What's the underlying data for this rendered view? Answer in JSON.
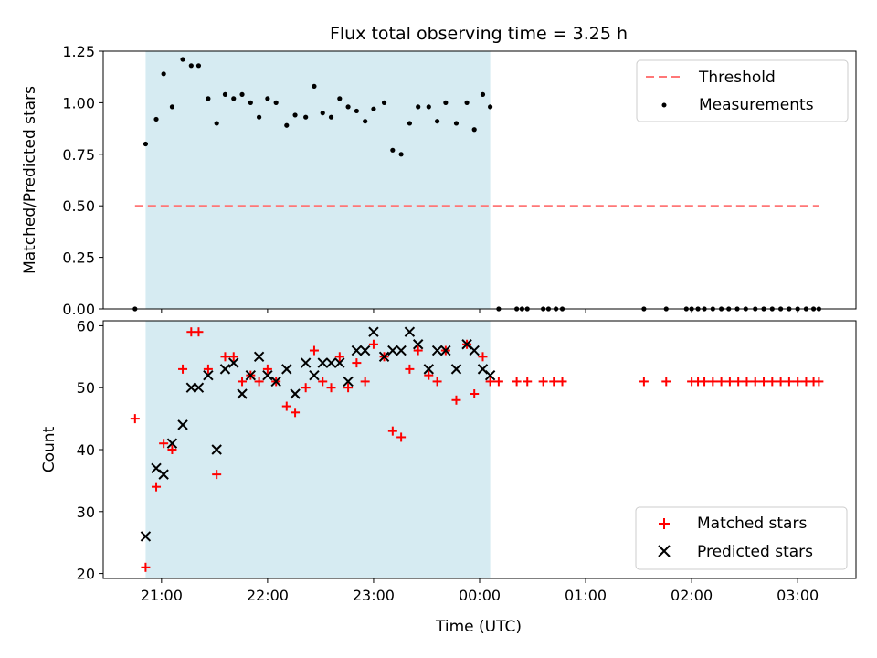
{
  "chart_data": {
    "title": "Flux total observing time = 3.25 h",
    "xlabel": "Time (UTC)",
    "x_unit": "hours after 21:00 UTC",
    "xlim": [
      -0.55,
      6.55
    ],
    "xticks": [
      {
        "value": 0,
        "label": "21:00"
      },
      {
        "value": 1,
        "label": "22:00"
      },
      {
        "value": 2,
        "label": "23:00"
      },
      {
        "value": 3,
        "label": "00:00"
      },
      {
        "value": 4,
        "label": "01:00"
      },
      {
        "value": 5,
        "label": "02:00"
      },
      {
        "value": 6,
        "label": "03:00"
      }
    ],
    "observing_window": {
      "start": -0.15,
      "end": 3.1,
      "color": "#add8e6"
    },
    "top": {
      "type": "scatter",
      "ylabel": "Matched/Predicted stars",
      "ylim": [
        0,
        1.25
      ],
      "yticks": [
        {
          "value": 0,
          "label": "0.00"
        },
        {
          "value": 0.25,
          "label": "0.25"
        },
        {
          "value": 0.5,
          "label": "0.50"
        },
        {
          "value": 0.75,
          "label": "0.75"
        },
        {
          "value": 1.0,
          "label": "1.00"
        },
        {
          "value": 1.25,
          "label": "1.25"
        }
      ],
      "threshold": {
        "name": "Threshold",
        "value": 0.5,
        "x_range": [
          -0.25,
          6.2
        ],
        "color": "#ff7777"
      },
      "legend": {
        "placement": "top-right",
        "entries": [
          "Threshold",
          "Measurements"
        ]
      },
      "series": [
        {
          "name": "Measurements",
          "color": "#000000",
          "points": [
            [
              -0.25,
              0.0
            ],
            [
              -0.15,
              0.8
            ],
            [
              -0.05,
              0.92
            ],
            [
              0.02,
              1.14
            ],
            [
              0.1,
              0.98
            ],
            [
              0.2,
              1.21
            ],
            [
              0.28,
              1.18
            ],
            [
              0.35,
              1.18
            ],
            [
              0.44,
              1.02
            ],
            [
              0.52,
              0.9
            ],
            [
              0.6,
              1.04
            ],
            [
              0.68,
              1.02
            ],
            [
              0.76,
              1.04
            ],
            [
              0.84,
              1.0
            ],
            [
              0.92,
              0.93
            ],
            [
              1.0,
              1.02
            ],
            [
              1.08,
              1.0
            ],
            [
              1.18,
              0.89
            ],
            [
              1.26,
              0.94
            ],
            [
              1.36,
              0.93
            ],
            [
              1.44,
              1.08
            ],
            [
              1.52,
              0.95
            ],
            [
              1.6,
              0.93
            ],
            [
              1.68,
              1.02
            ],
            [
              1.76,
              0.98
            ],
            [
              1.84,
              0.96
            ],
            [
              1.92,
              0.91
            ],
            [
              2.0,
              0.97
            ],
            [
              2.1,
              1.0
            ],
            [
              2.18,
              0.77
            ],
            [
              2.26,
              0.75
            ],
            [
              2.34,
              0.9
            ],
            [
              2.42,
              0.98
            ],
            [
              2.52,
              0.98
            ],
            [
              2.6,
              0.91
            ],
            [
              2.68,
              1.0
            ],
            [
              2.78,
              0.9
            ],
            [
              2.88,
              1.0
            ],
            [
              2.95,
              0.87
            ],
            [
              3.03,
              1.04
            ],
            [
              3.1,
              0.98
            ],
            [
              3.18,
              0.0
            ],
            [
              3.35,
              0.0
            ],
            [
              3.4,
              0.0
            ],
            [
              3.45,
              0.0
            ],
            [
              3.6,
              0.0
            ],
            [
              3.65,
              0.0
            ],
            [
              3.72,
              0.0
            ],
            [
              3.78,
              0.0
            ],
            [
              4.55,
              0.0
            ],
            [
              4.76,
              0.0
            ],
            [
              4.95,
              0.0
            ],
            [
              5.0,
              0.0
            ],
            [
              5.06,
              0.0
            ],
            [
              5.12,
              0.0
            ],
            [
              5.2,
              0.0
            ],
            [
              5.28,
              0.0
            ],
            [
              5.35,
              0.0
            ],
            [
              5.43,
              0.0
            ],
            [
              5.51,
              0.0
            ],
            [
              5.6,
              0.0
            ],
            [
              5.68,
              0.0
            ],
            [
              5.76,
              0.0
            ],
            [
              5.84,
              0.0
            ],
            [
              5.92,
              0.0
            ],
            [
              6.0,
              0.0
            ],
            [
              6.08,
              0.0
            ],
            [
              6.15,
              0.0
            ],
            [
              6.2,
              0.0
            ]
          ]
        }
      ]
    },
    "bottom": {
      "type": "scatter",
      "ylabel": "Count",
      "ylim": [
        19.2,
        60.8
      ],
      "yticks": [
        {
          "value": 20,
          "label": "20"
        },
        {
          "value": 30,
          "label": "30"
        },
        {
          "value": 40,
          "label": "40"
        },
        {
          "value": 50,
          "label": "50"
        },
        {
          "value": 60,
          "label": "60"
        }
      ],
      "legend": {
        "placement": "lower-right",
        "entries": [
          "Matched stars",
          "Predicted stars"
        ]
      },
      "series": [
        {
          "name": "Matched stars",
          "marker": "+",
          "color": "#ff0000",
          "points": [
            [
              -0.25,
              45
            ],
            [
              -0.15,
              21
            ],
            [
              -0.05,
              34
            ],
            [
              0.02,
              41
            ],
            [
              0.1,
              40
            ],
            [
              0.2,
              53
            ],
            [
              0.28,
              59
            ],
            [
              0.35,
              59
            ],
            [
              0.44,
              53
            ],
            [
              0.52,
              36
            ],
            [
              0.6,
              55
            ],
            [
              0.68,
              55
            ],
            [
              0.76,
              51
            ],
            [
              0.84,
              52
            ],
            [
              0.92,
              51
            ],
            [
              1.0,
              53
            ],
            [
              1.08,
              51
            ],
            [
              1.18,
              47
            ],
            [
              1.26,
              46
            ],
            [
              1.36,
              50
            ],
            [
              1.44,
              56
            ],
            [
              1.52,
              51
            ],
            [
              1.6,
              50
            ],
            [
              1.68,
              55
            ],
            [
              1.76,
              50
            ],
            [
              1.84,
              54
            ],
            [
              1.92,
              51
            ],
            [
              2.0,
              57
            ],
            [
              2.1,
              55
            ],
            [
              2.18,
              43
            ],
            [
              2.26,
              42
            ],
            [
              2.34,
              53
            ],
            [
              2.42,
              56
            ],
            [
              2.52,
              52
            ],
            [
              2.6,
              51
            ],
            [
              2.68,
              56
            ],
            [
              2.78,
              48
            ],
            [
              2.88,
              57
            ],
            [
              2.95,
              49
            ],
            [
              3.03,
              55
            ],
            [
              3.1,
              51
            ],
            [
              3.18,
              51
            ],
            [
              3.35,
              51
            ],
            [
              3.45,
              51
            ],
            [
              3.6,
              51
            ],
            [
              3.7,
              51
            ],
            [
              3.78,
              51
            ],
            [
              4.55,
              51
            ],
            [
              4.76,
              51
            ],
            [
              5.0,
              51
            ],
            [
              5.06,
              51
            ],
            [
              5.12,
              51
            ],
            [
              5.2,
              51
            ],
            [
              5.28,
              51
            ],
            [
              5.36,
              51
            ],
            [
              5.44,
              51
            ],
            [
              5.52,
              51
            ],
            [
              5.6,
              51
            ],
            [
              5.68,
              51
            ],
            [
              5.76,
              51
            ],
            [
              5.84,
              51
            ],
            [
              5.92,
              51
            ],
            [
              6.0,
              51
            ],
            [
              6.08,
              51
            ],
            [
              6.15,
              51
            ],
            [
              6.2,
              51
            ]
          ]
        },
        {
          "name": "Predicted stars",
          "marker": "x",
          "color": "#000000",
          "points": [
            [
              -0.15,
              26
            ],
            [
              -0.05,
              37
            ],
            [
              0.02,
              36
            ],
            [
              0.1,
              41
            ],
            [
              0.2,
              44
            ],
            [
              0.28,
              50
            ],
            [
              0.35,
              50
            ],
            [
              0.44,
              52
            ],
            [
              0.52,
              40
            ],
            [
              0.6,
              53
            ],
            [
              0.68,
              54
            ],
            [
              0.76,
              49
            ],
            [
              0.84,
              52
            ],
            [
              0.92,
              55
            ],
            [
              1.0,
              52
            ],
            [
              1.08,
              51
            ],
            [
              1.18,
              53
            ],
            [
              1.26,
              49
            ],
            [
              1.36,
              54
            ],
            [
              1.44,
              52
            ],
            [
              1.52,
              54
            ],
            [
              1.6,
              54
            ],
            [
              1.68,
              54
            ],
            [
              1.76,
              51
            ],
            [
              1.84,
              56
            ],
            [
              1.92,
              56
            ],
            [
              2.0,
              59
            ],
            [
              2.1,
              55
            ],
            [
              2.18,
              56
            ],
            [
              2.26,
              56
            ],
            [
              2.34,
              59
            ],
            [
              2.42,
              57
            ],
            [
              2.52,
              53
            ],
            [
              2.6,
              56
            ],
            [
              2.68,
              56
            ],
            [
              2.78,
              53
            ],
            [
              2.88,
              57
            ],
            [
              2.95,
              56
            ],
            [
              3.03,
              53
            ],
            [
              3.1,
              52
            ]
          ]
        }
      ]
    }
  }
}
